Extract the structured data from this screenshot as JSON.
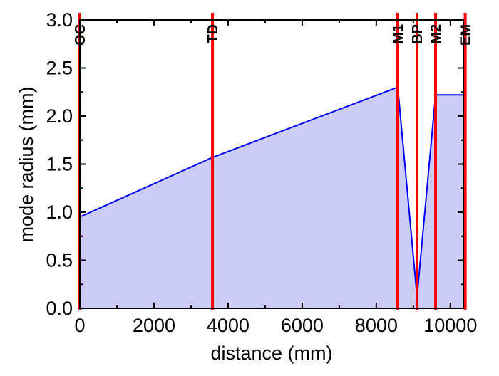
{
  "chart_data": {
    "type": "area",
    "xlabel": "distance (mm)",
    "ylabel": "mode radius (mm)",
    "xlim": [
      0,
      10350
    ],
    "ylim": [
      0,
      3.0
    ],
    "xticks": [
      0,
      2000,
      4000,
      6000,
      8000,
      10000
    ],
    "yticks": [
      0.0,
      0.5,
      1.0,
      1.5,
      2.0,
      2.5,
      3.0
    ],
    "xtick_labels": [
      "0",
      "2000",
      "4000",
      "6000",
      "8000",
      "10000"
    ],
    "ytick_labels": [
      "0.0",
      "0.5",
      "1.0",
      "1.5",
      "2.0",
      "2.5",
      "3.0"
    ],
    "grid": false,
    "series": [
      {
        "x": [
          0,
          3580,
          8580,
          9100,
          9600,
          10400
        ],
        "y": [
          0.95,
          1.57,
          2.3,
          0.12,
          2.22,
          2.22
        ],
        "line_color": "#0000ff",
        "fill_color": "#ccccf7"
      }
    ],
    "markers": [
      {
        "label": "OC",
        "x": 0
      },
      {
        "label": "TD",
        "x": 3580
      },
      {
        "label": "M1",
        "x": 8580
      },
      {
        "label": "BP",
        "x": 9100
      },
      {
        "label": "M2",
        "x": 9600
      },
      {
        "label": "EM",
        "x": 10400
      }
    ],
    "marker_color": "#ff0000"
  }
}
